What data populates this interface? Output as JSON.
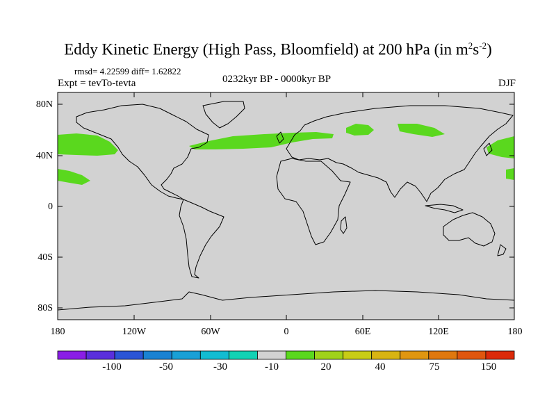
{
  "title": {
    "text": "Eddy Kinetic Energy (High Pass, Bloomfield) at 200 hPa (in m",
    "sup1": "2",
    "s": "s",
    "sup2": "-2",
    "close": ")"
  },
  "stats": "rmsd= 4.22599  diff= 1.62822",
  "expt": "Expt = tevTo-tevta",
  "period": "0232kyr BP - 0000kyr BP",
  "season": "DJF",
  "lat_labels": [
    "80N",
    "40N",
    "0",
    "40S",
    "80S"
  ],
  "lon_labels": [
    "180",
    "120W",
    "60W",
    "0",
    "60E",
    "120E",
    "180"
  ],
  "colorbar": {
    "colors": [
      "#8a1ee6",
      "#5a2fdc",
      "#2b55d6",
      "#1a82d2",
      "#19a0d6",
      "#12bcd2",
      "#12d2b4",
      "#d2d2d2",
      "#5ad81e",
      "#a0d21a",
      "#c8cc16",
      "#d8b412",
      "#e09610",
      "#e0780e",
      "#e0560e",
      "#dc2a0a"
    ],
    "labels": [
      "-100",
      "-50",
      "-30",
      "-10",
      "20",
      "40",
      "75",
      "150"
    ]
  },
  "map": {
    "background": "#d2d2d2",
    "highlight": "#5ad81e"
  }
}
